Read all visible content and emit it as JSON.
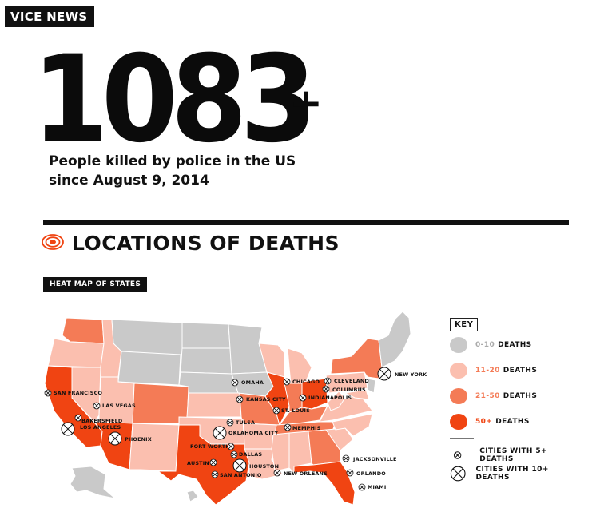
{
  "brand": "VICE NEWS",
  "headline": {
    "number": "1083",
    "plus": "+",
    "subtitle_line1": "People killed by police in the US",
    "subtitle_line2": "since August 9, 2014"
  },
  "section": {
    "title": "LOCATIONS OF DEATHS",
    "icon": "target-icon"
  },
  "subhead": "HEAT MAP OF STATES",
  "colors": {
    "c0_10": "#c9c9c9",
    "c11_20": "#fbbfaf",
    "c21_50": "#f47b56",
    "c50_plus": "#f04412",
    "black": "#111111"
  },
  "key": {
    "title": "KEY",
    "ranges": [
      {
        "range": "0-10",
        "label": "DEATHS",
        "color": "#c9c9c9"
      },
      {
        "range": "11-20",
        "label": "DEATHS",
        "color": "#fbbfaf"
      },
      {
        "range": "21-50",
        "label": "DEATHS",
        "color": "#f47b56"
      },
      {
        "range": "50+",
        "label": "DEATHS",
        "color": "#f04412"
      }
    ],
    "cities_5": "CITIES WITH 5+ DEATHS",
    "cities_10": "CITIES WITH 10+ DEATHS"
  },
  "cities": {
    "san_francisco": "SAN FRANCISCO",
    "las_vegas": "LAS VEGAS",
    "bakersfield": "BAKERSFIELD",
    "los_angeles": "LOS ANGELES",
    "phoenix": "PHOENIX",
    "fort_worth": "FORT WORTH",
    "dallas": "DALLAS",
    "austin": "AUSTIN",
    "san_antonio": "SAN ANTONIO",
    "houston": "HOUSTON",
    "tulsa": "TULSA",
    "oklahoma_city": "OKLAHOMA CITY",
    "omaha": "OMAHA",
    "kansas_city": "KANSAS CITY",
    "st_louis": "ST. LOUIS",
    "chicago": "CHICAGO",
    "indianapolis": "INDIANAPOLIS",
    "cleveland": "CLEVELAND",
    "columbus": "COLUMBUS",
    "memphis": "MEMPHIS",
    "new_orleans": "NEW ORLEANS",
    "jacksonville": "JACKSONVILLE",
    "orlando": "ORLANDO",
    "miami": "MIAMI",
    "new_york": "NEW YORK"
  }
}
